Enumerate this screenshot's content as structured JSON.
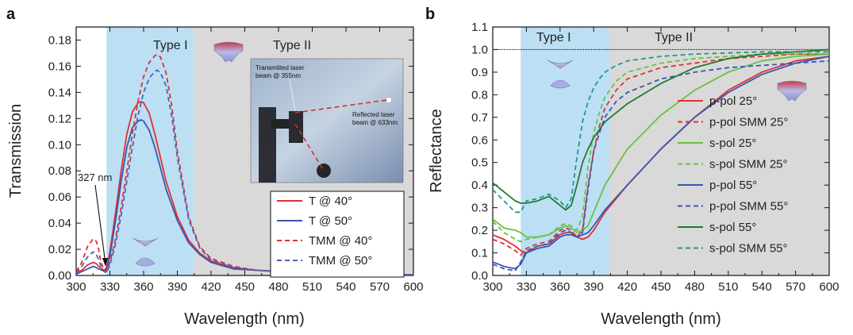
{
  "panels": {
    "a": {
      "label": "a",
      "xlabel": "Wavelength (nm)",
      "ylabel": "Transmission",
      "region1_label": "Type I",
      "region2_label": "Type II",
      "annotation": "327 nm",
      "inset": {
        "line1": "Transmitted laser",
        "line2": "beam @ 355nm",
        "line3": "Reflected laser",
        "line4": "beam @ 633nm"
      }
    },
    "b": {
      "label": "b",
      "xlabel": "Wavelength (nm)",
      "ylabel": "Reflectance",
      "region1_label": "Type I",
      "region2_label": "Type II"
    }
  },
  "chart_data": [
    {
      "type": "line",
      "panel": "a",
      "xlabel": "Wavelength (nm)",
      "ylabel": "Transmission",
      "xlim": [
        300,
        600
      ],
      "ylim": [
        0,
        0.19
      ],
      "xticks": [
        300,
        330,
        360,
        390,
        420,
        450,
        480,
        510,
        540,
        570,
        600
      ],
      "yticks": [
        0.0,
        0.02,
        0.04,
        0.06,
        0.08,
        0.1,
        0.12,
        0.14,
        0.16,
        0.18
      ],
      "regions": [
        {
          "label": "Type I",
          "from": 327,
          "to": 405,
          "color": "#bcdff4"
        },
        {
          "label": "Type II",
          "from": 405,
          "to": 600,
          "color": "#d9d9d9"
        }
      ],
      "legend_position": "bottom-right",
      "series": [
        {
          "name": "T @ 40°",
          "color": "#e03030",
          "dash": "solid",
          "x": [
            300,
            305,
            310,
            315,
            318,
            320,
            323,
            325,
            327,
            330,
            335,
            340,
            345,
            350,
            355,
            358,
            360,
            365,
            370,
            375,
            380,
            390,
            400,
            410,
            420,
            440,
            460,
            480,
            500,
            520,
            540,
            560,
            580,
            600
          ],
          "y": [
            0.002,
            0.004,
            0.008,
            0.01,
            0.009,
            0.007,
            0.005,
            0.004,
            0.006,
            0.018,
            0.048,
            0.08,
            0.108,
            0.125,
            0.132,
            0.133,
            0.132,
            0.124,
            0.108,
            0.09,
            0.072,
            0.045,
            0.027,
            0.017,
            0.011,
            0.006,
            0.004,
            0.003,
            0.002,
            0.0015,
            0.001,
            0.001,
            0.0008,
            0.0005
          ]
        },
        {
          "name": "T @ 50°",
          "color": "#3a56b0",
          "dash": "solid",
          "x": [
            300,
            305,
            310,
            315,
            318,
            320,
            323,
            325,
            327,
            330,
            335,
            340,
            345,
            350,
            355,
            358,
            360,
            365,
            370,
            375,
            380,
            390,
            400,
            410,
            420,
            440,
            460,
            480,
            500,
            520,
            540,
            560,
            580,
            600
          ],
          "y": [
            0.001,
            0.003,
            0.005,
            0.007,
            0.006,
            0.005,
            0.004,
            0.003,
            0.005,
            0.015,
            0.042,
            0.072,
            0.098,
            0.113,
            0.118,
            0.119,
            0.118,
            0.111,
            0.098,
            0.082,
            0.066,
            0.042,
            0.025,
            0.016,
            0.01,
            0.005,
            0.004,
            0.003,
            0.002,
            0.0015,
            0.001,
            0.001,
            0.0008,
            0.0005
          ]
        },
        {
          "name": "TMM @ 40°",
          "color": "#e03030",
          "dash": "dashed",
          "x": [
            300,
            305,
            310,
            315,
            318,
            320,
            322,
            325,
            327,
            330,
            335,
            340,
            345,
            350,
            355,
            360,
            365,
            370,
            372,
            375,
            380,
            385,
            390,
            400,
            410,
            420,
            440,
            460,
            480,
            500,
            520,
            540,
            560,
            580,
            600
          ],
          "y": [
            0.003,
            0.01,
            0.022,
            0.028,
            0.026,
            0.02,
            0.01,
            0.004,
            0.003,
            0.01,
            0.028,
            0.052,
            0.08,
            0.108,
            0.133,
            0.152,
            0.163,
            0.168,
            0.169,
            0.167,
            0.155,
            0.13,
            0.095,
            0.045,
            0.022,
            0.013,
            0.007,
            0.004,
            0.003,
            0.002,
            0.0015,
            0.001,
            0.001,
            0.0008,
            0.0006
          ]
        },
        {
          "name": "TMM @ 50°",
          "color": "#4a62b6",
          "dash": "dashed",
          "x": [
            300,
            305,
            310,
            315,
            318,
            320,
            322,
            325,
            327,
            330,
            335,
            340,
            345,
            350,
            355,
            360,
            365,
            370,
            372,
            375,
            380,
            385,
            390,
            400,
            410,
            420,
            440,
            460,
            480,
            500,
            520,
            540,
            560,
            580,
            600
          ],
          "y": [
            0.002,
            0.007,
            0.014,
            0.018,
            0.016,
            0.012,
            0.007,
            0.003,
            0.002,
            0.008,
            0.024,
            0.046,
            0.072,
            0.098,
            0.122,
            0.14,
            0.151,
            0.156,
            0.157,
            0.155,
            0.145,
            0.122,
            0.09,
            0.043,
            0.021,
            0.012,
            0.006,
            0.004,
            0.003,
            0.002,
            0.0015,
            0.001,
            0.001,
            0.0008,
            0.0006
          ]
        }
      ]
    },
    {
      "type": "line",
      "panel": "b",
      "xlabel": "Wavelength (nm)",
      "ylabel": "Reflectance",
      "xlim": [
        300,
        600
      ],
      "ylim": [
        0,
        1.1
      ],
      "xticks": [
        300,
        330,
        360,
        390,
        420,
        450,
        480,
        510,
        540,
        570,
        600
      ],
      "yticks": [
        0.0,
        0.1,
        0.2,
        0.3,
        0.4,
        0.5,
        0.6,
        0.7,
        0.8,
        0.9,
        1.0,
        1.1
      ],
      "reference_line": 1.0,
      "regions": [
        {
          "label": "Type I",
          "from": 325,
          "to": 404,
          "color": "#bcdff4"
        },
        {
          "label": "Type II",
          "from": 404,
          "to": 600,
          "color": "#d9d9d9"
        }
      ],
      "legend_position": "right",
      "series": [
        {
          "name": "p-pol 25°",
          "color": "#e03030",
          "dash": "solid",
          "x": [
            300,
            310,
            320,
            325,
            330,
            340,
            350,
            360,
            365,
            370,
            375,
            380,
            385,
            390,
            400,
            420,
            450,
            480,
            510,
            540,
            570,
            600
          ],
          "y": [
            0.18,
            0.16,
            0.13,
            0.11,
            0.1,
            0.13,
            0.14,
            0.18,
            0.19,
            0.19,
            0.17,
            0.16,
            0.17,
            0.2,
            0.28,
            0.4,
            0.56,
            0.7,
            0.82,
            0.9,
            0.95,
            0.97
          ]
        },
        {
          "name": "p-pol SMM 25°",
          "color": "#e03030",
          "dash": "dashed",
          "x": [
            300,
            310,
            320,
            325,
            330,
            340,
            350,
            360,
            365,
            370,
            375,
            380,
            385,
            390,
            395,
            400,
            410,
            420,
            450,
            480,
            510,
            540,
            570,
            600
          ],
          "y": [
            0.16,
            0.14,
            0.11,
            0.09,
            0.12,
            0.14,
            0.15,
            0.2,
            0.21,
            0.2,
            0.17,
            0.2,
            0.4,
            0.55,
            0.66,
            0.74,
            0.82,
            0.87,
            0.92,
            0.94,
            0.96,
            0.97,
            0.98,
            0.98
          ]
        },
        {
          "name": "s-pol 25°",
          "color": "#6cbf3e",
          "dash": "solid",
          "x": [
            300,
            310,
            320,
            325,
            330,
            340,
            350,
            360,
            365,
            370,
            375,
            380,
            385,
            390,
            400,
            420,
            450,
            480,
            510,
            540,
            570,
            600
          ],
          "y": [
            0.25,
            0.21,
            0.2,
            0.19,
            0.17,
            0.17,
            0.18,
            0.21,
            0.22,
            0.21,
            0.19,
            0.2,
            0.22,
            0.28,
            0.4,
            0.56,
            0.71,
            0.82,
            0.9,
            0.95,
            0.97,
            0.98
          ]
        },
        {
          "name": "s-pol SMM 25°",
          "color": "#6cbf3e",
          "dash": "dashed",
          "x": [
            300,
            310,
            320,
            325,
            330,
            340,
            350,
            360,
            365,
            370,
            375,
            380,
            385,
            390,
            395,
            400,
            410,
            420,
            450,
            480,
            510,
            540,
            570,
            600
          ],
          "y": [
            0.24,
            0.19,
            0.16,
            0.15,
            0.16,
            0.17,
            0.18,
            0.22,
            0.23,
            0.22,
            0.2,
            0.26,
            0.48,
            0.63,
            0.72,
            0.79,
            0.86,
            0.9,
            0.94,
            0.96,
            0.97,
            0.98,
            0.98,
            0.98
          ]
        },
        {
          "name": "p-pol 55°",
          "color": "#3a56b0",
          "dash": "solid",
          "x": [
            300,
            310,
            320,
            325,
            330,
            340,
            350,
            360,
            365,
            370,
            375,
            380,
            385,
            390,
            400,
            420,
            450,
            480,
            510,
            540,
            570,
            600
          ],
          "y": [
            0.06,
            0.04,
            0.03,
            0.05,
            0.1,
            0.12,
            0.13,
            0.17,
            0.18,
            0.18,
            0.17,
            0.18,
            0.19,
            0.22,
            0.29,
            0.4,
            0.56,
            0.7,
            0.81,
            0.89,
            0.94,
            0.97
          ]
        },
        {
          "name": "p-pol SMM 55°",
          "color": "#3a56b0",
          "dash": "dashed",
          "x": [
            300,
            310,
            320,
            325,
            330,
            340,
            350,
            360,
            365,
            370,
            375,
            380,
            385,
            390,
            395,
            400,
            410,
            420,
            450,
            480,
            510,
            540,
            570,
            600
          ],
          "y": [
            0.05,
            0.03,
            0.02,
            0.06,
            0.11,
            0.13,
            0.14,
            0.19,
            0.2,
            0.19,
            0.17,
            0.19,
            0.38,
            0.55,
            0.63,
            0.7,
            0.77,
            0.81,
            0.87,
            0.9,
            0.92,
            0.93,
            0.94,
            0.95
          ]
        },
        {
          "name": "s-pol 55°",
          "color": "#237a2e",
          "dash": "solid",
          "x": [
            300,
            310,
            320,
            325,
            330,
            340,
            350,
            360,
            365,
            370,
            375,
            380,
            385,
            390,
            400,
            420,
            450,
            480,
            510,
            540,
            570,
            600
          ],
          "y": [
            0.41,
            0.37,
            0.33,
            0.32,
            0.32,
            0.33,
            0.35,
            0.31,
            0.29,
            0.31,
            0.4,
            0.5,
            0.56,
            0.61,
            0.68,
            0.76,
            0.85,
            0.92,
            0.96,
            0.98,
            0.99,
            1.0
          ]
        },
        {
          "name": "s-pol SMM 55°",
          "color": "#1f9a86",
          "dash": "dashed",
          "x": [
            300,
            310,
            320,
            325,
            330,
            340,
            350,
            360,
            365,
            370,
            375,
            380,
            385,
            390,
            395,
            400,
            410,
            420,
            450,
            480,
            510,
            540,
            570,
            600
          ],
          "y": [
            0.38,
            0.33,
            0.28,
            0.28,
            0.33,
            0.34,
            0.36,
            0.33,
            0.3,
            0.34,
            0.52,
            0.68,
            0.77,
            0.83,
            0.87,
            0.9,
            0.93,
            0.95,
            0.97,
            0.98,
            0.985,
            0.99,
            0.99,
            0.99
          ]
        }
      ]
    }
  ]
}
